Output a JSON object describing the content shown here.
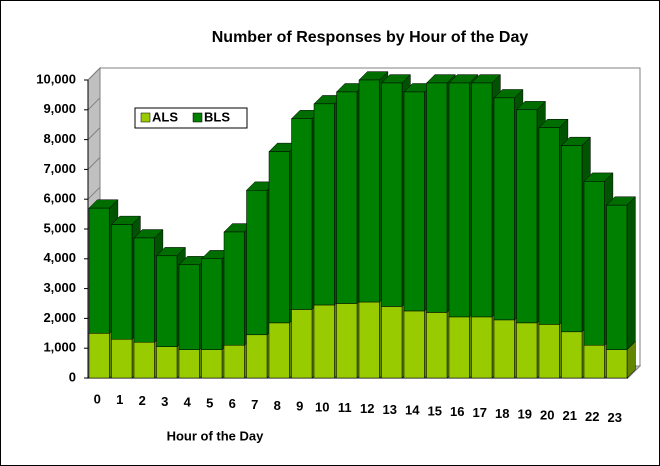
{
  "chart_data": {
    "type": "bar",
    "stacked": true,
    "title": "Number of Responses by Hour of the Day",
    "x_label": "Hour of the Day",
    "categories": [
      "0",
      "1",
      "2",
      "3",
      "4",
      "5",
      "6",
      "7",
      "8",
      "9",
      "10",
      "11",
      "12",
      "13",
      "14",
      "15",
      "16",
      "17",
      "18",
      "19",
      "20",
      "21",
      "22",
      "23"
    ],
    "series": [
      {
        "name": "ALS",
        "color": "#99cc00",
        "values": [
          1500,
          1300,
          1200,
          1050,
          950,
          950,
          1100,
          1450,
          1850,
          2300,
          2450,
          2500,
          2550,
          2400,
          2250,
          2200,
          2050,
          2050,
          1950,
          1850,
          1800,
          1550,
          1100,
          950
        ]
      },
      {
        "name": "BLS",
        "color": "#008000",
        "values": [
          4200,
          3850,
          3500,
          3050,
          2850,
          3050,
          3800,
          4850,
          5750,
          6400,
          6750,
          7100,
          7450,
          7500,
          7350,
          7700,
          7850,
          7850,
          7450,
          7150,
          6600,
          6250,
          5500,
          4850
        ]
      }
    ],
    "ylim": [
      0,
      10000
    ],
    "yticks": [
      0,
      {
        "value": 1000,
        "label": "1,000"
      },
      {
        "value": 2000,
        "label": "2,000"
      },
      {
        "value": 3000,
        "label": "3,000"
      },
      {
        "value": 4000,
        "label": "4,000"
      },
      {
        "value": 5000,
        "label": "5,000"
      },
      {
        "value": 6000,
        "label": "6,000"
      },
      {
        "value": 7000,
        "label": "7,000"
      },
      {
        "value": 8000,
        "label": "8,000"
      },
      {
        "value": 9000,
        "label": "9,000"
      },
      {
        "value": 10000,
        "label": "10,000"
      }
    ],
    "legend": "upper left"
  }
}
